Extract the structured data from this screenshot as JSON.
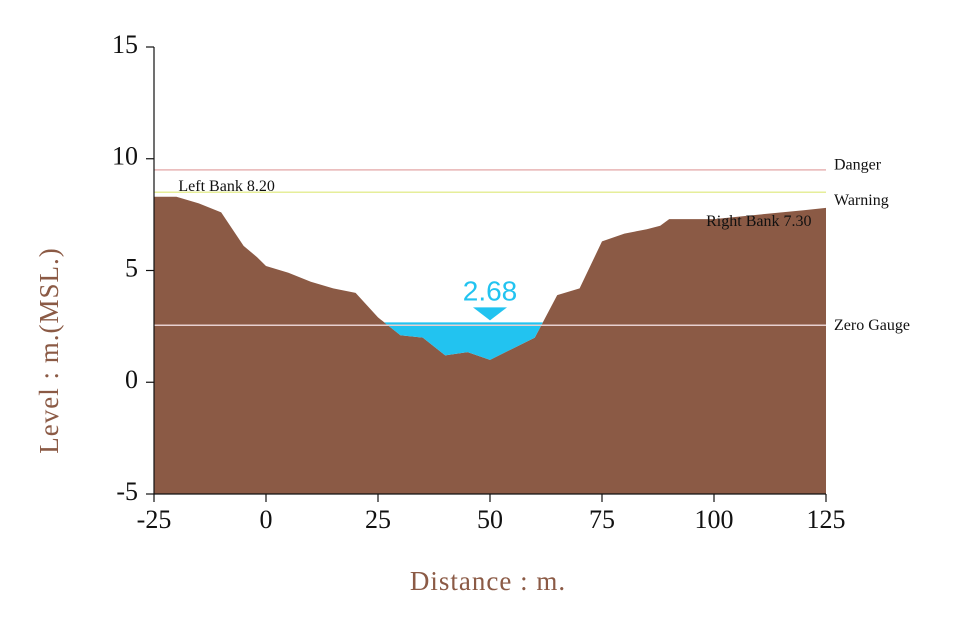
{
  "chart_data": {
    "type": "area",
    "xlabel": "Distance : m.",
    "ylabel": "Level : m.(MSL.)",
    "xlim": [
      -25,
      125
    ],
    "ylim": [
      -5,
      15
    ],
    "xticks": [
      -25,
      0,
      25,
      50,
      75,
      100,
      125
    ],
    "yticks": [
      -5,
      0,
      5,
      10,
      15
    ],
    "grid": false,
    "colors": {
      "ground": "#8B5A45",
      "water": "#22C3F0",
      "danger": "#E8B4B4",
      "warning": "#E6EE9A",
      "zero_gauge": "#E8D0D0",
      "axis_title": "#8B5A45"
    },
    "ground_profile": {
      "x": [
        -25,
        -20,
        -15,
        -10,
        -5,
        -2,
        0,
        5,
        10,
        15,
        20,
        25,
        30,
        35,
        40,
        45,
        50,
        55,
        60,
        65,
        70,
        75,
        80,
        85,
        88,
        90,
        100,
        110,
        120,
        125
      ],
      "y": [
        8.3,
        8.3,
        8.0,
        7.6,
        6.1,
        5.6,
        5.2,
        4.9,
        4.5,
        4.2,
        4.0,
        2.9,
        2.1,
        2.0,
        1.2,
        1.35,
        1.0,
        1.5,
        2.0,
        3.9,
        4.2,
        6.3,
        6.65,
        6.85,
        7.0,
        7.3,
        7.3,
        7.5,
        7.7,
        7.8
      ]
    },
    "water_level": {
      "value": 2.68,
      "label": "2.68"
    },
    "reference_lines": [
      {
        "name": "Danger",
        "value": 9.5,
        "color": "#E8B4B4"
      },
      {
        "name": "Warning",
        "value": 8.5,
        "color": "#E6EE9A"
      },
      {
        "name": "Zero Gauge",
        "value": 2.55,
        "color": "#E8D0D0"
      }
    ],
    "annotations": {
      "left_bank": {
        "label": "Left Bank 8.20",
        "x": -20,
        "y": 8.2
      },
      "right_bank": {
        "label": "Right Bank 7.30",
        "x": 110,
        "y": 7.3
      }
    }
  }
}
